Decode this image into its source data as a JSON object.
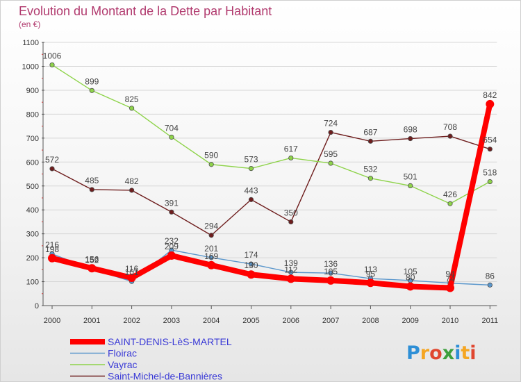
{
  "chart_data": {
    "type": "line",
    "title": "Evolution du Montant de la Dette par Habitant",
    "subtitle": "(en €)",
    "xlabel": "",
    "ylabel": "",
    "categories": [
      "2000",
      "2001",
      "2002",
      "2003",
      "2004",
      "2005",
      "2006",
      "2007",
      "2008",
      "2009",
      "2010",
      "2011"
    ],
    "ylim": [
      0,
      1100
    ],
    "yticks": [
      0,
      100,
      200,
      300,
      400,
      500,
      600,
      700,
      800,
      900,
      1000,
      1100
    ],
    "grid": "horizontal",
    "legend_position": "bottom-left",
    "series": [
      {
        "name": "Saint-Michel-de-Bannières",
        "color": "#6e1d1d",
        "values": [
          572,
          485,
          482,
          391,
          294,
          443,
          350,
          724,
          687,
          698,
          708,
          654
        ],
        "labels": [
          "572",
          "485",
          "482",
          "391",
          "294",
          "443",
          "350",
          "724",
          "687",
          "698",
          "708",
          "654"
        ]
      },
      {
        "name": "Vayrac",
        "color": "#8ed34a",
        "values": [
          1006,
          899,
          825,
          704,
          590,
          573,
          617,
          595,
          532,
          501,
          426,
          518
        ],
        "labels": [
          "1006",
          "899",
          "825",
          "704",
          "590",
          "573",
          "617",
          "595",
          "532",
          "501",
          "426",
          "518"
        ]
      },
      {
        "name": "Floirac",
        "color": "#5b97cc",
        "values": [
          216,
          152,
          101,
          232,
          201,
          174,
          139,
          136,
          113,
          105,
          94,
          86
        ],
        "labels": [
          "216",
          "152",
          "101",
          "232",
          "201",
          "174",
          "139",
          "136",
          "113",
          "105",
          "94",
          "86"
        ]
      },
      {
        "name": "SAINT-DENIS-LèS-MARTEL",
        "color": "#ff0000",
        "values": [
          198,
          156,
          116,
          209,
          169,
          130,
          112,
          105,
          95,
          80,
          74,
          842
        ],
        "labels": [
          "198",
          "156",
          "116",
          "209",
          "169",
          "130",
          "112",
          "105",
          "95",
          "80",
          "74",
          "842"
        ]
      }
    ]
  },
  "legend": [
    {
      "label": "SAINT-DENIS-LèS-MARTEL",
      "color": "#ff0000",
      "style": "thick"
    },
    {
      "label": "Floirac",
      "color": "#5b97cc",
      "style": "thin"
    },
    {
      "label": "Vayrac",
      "color": "#8ed34a",
      "style": "thin"
    },
    {
      "label": "Saint-Michel-de-Bannières",
      "color": "#6e1d1d",
      "style": "thin"
    }
  ],
  "logo": {
    "text": "Proxiti",
    "letters": [
      {
        "ch": "P",
        "color": "#2e8fd6"
      },
      {
        "ch": "r",
        "color": "#f5a623"
      },
      {
        "ch": "o",
        "color": "#e0462f"
      },
      {
        "ch": "x",
        "color": "#3c9f3c"
      },
      {
        "ch": "i",
        "color": "#2e8fd6"
      },
      {
        "ch": "t",
        "color": "#f5a623"
      },
      {
        "ch": "i",
        "color": "#e0462f"
      }
    ]
  }
}
